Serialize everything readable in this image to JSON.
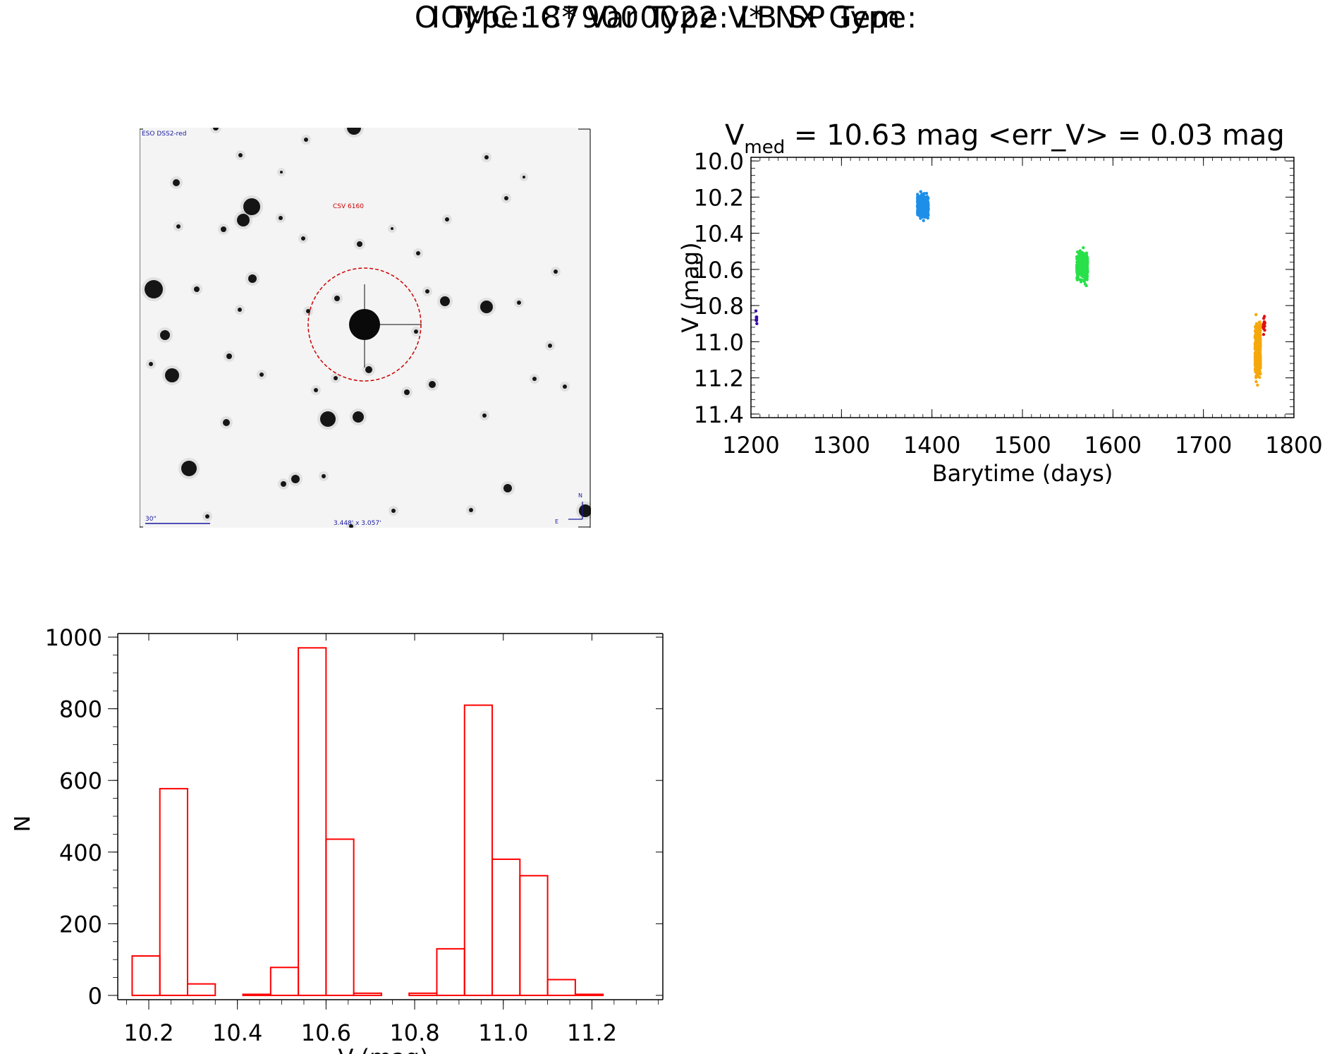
{
  "header": {
    "title_line1": "IOMC 1879000022   V* NX Gem",
    "title_line2": "O Type: C*  Var Type: LB  SP Type:"
  },
  "finder_chart": {
    "survey_label": "ESO DSS2-red",
    "object_label": "CSV 6160",
    "scale_bar_label": "30\"",
    "field_size_label": "3.448' x 3.057'",
    "compass_north": "N",
    "compass_east": "E",
    "colors": {
      "circle": "#cc0000",
      "annotation": "#1a1aa0",
      "object_label": "#cc0000"
    }
  },
  "chart_data": [
    {
      "type": "scatter",
      "title_main": "V",
      "title_sub": "med",
      "title_rest": " = 10.63 mag <err_V> = 0.03 mag",
      "xlabel": "Barytime (days)",
      "ylabel": "V (mag)",
      "xlim": [
        1200,
        1800
      ],
      "ylim": [
        11.42,
        9.98
      ],
      "y_inverted": true,
      "xticks": [
        1200,
        1300,
        1400,
        1500,
        1600,
        1700,
        1800
      ],
      "yticks": [
        "10.0",
        "10.2",
        "10.4",
        "10.6",
        "10.8",
        "11.0",
        "11.2",
        "11.4"
      ],
      "clusters": [
        {
          "color": "#3b0aa8",
          "x_center": 1206,
          "x_spread": 1,
          "y_min": 10.83,
          "y_max": 10.9,
          "y_center": 10.86,
          "count": 8
        },
        {
          "color": "#1e8fe8",
          "x_center": 1390,
          "x_spread": 6,
          "y_min": 10.17,
          "y_max": 10.33,
          "y_center": 10.25,
          "count": 420
        },
        {
          "color": "#29e04a",
          "x_center": 1566,
          "x_spread": 6,
          "y_min": 10.48,
          "y_max": 10.69,
          "y_center": 10.6,
          "count": 420
        },
        {
          "color": "#f5a80c",
          "x_center": 1760,
          "x_spread": 3,
          "y_min": 10.85,
          "y_max": 11.24,
          "y_center": 11.05,
          "count": 520
        },
        {
          "color": "#e01010",
          "x_center": 1767,
          "x_spread": 1,
          "y_min": 10.86,
          "y_max": 10.96,
          "y_center": 10.92,
          "count": 18
        }
      ]
    },
    {
      "type": "bar",
      "subtype": "histogram",
      "xlabel": "V (mag)",
      "ylabel": "N",
      "xlim": [
        10.13,
        11.36
      ],
      "ylim": [
        -12,
        1010
      ],
      "xticks": [
        "10.2",
        "10.4",
        "10.6",
        "10.8",
        "11.0",
        "11.2"
      ],
      "yticks": [
        "0",
        "200",
        "400",
        "600",
        "800",
        "1000"
      ],
      "bin_width": 0.0625,
      "bins": [
        {
          "left": 10.1625,
          "count": 110
        },
        {
          "left": 10.225,
          "count": 577
        },
        {
          "left": 10.2875,
          "count": 32
        },
        {
          "left": 10.35,
          "count": 0
        },
        {
          "left": 10.4125,
          "count": 3
        },
        {
          "left": 10.475,
          "count": 78
        },
        {
          "left": 10.5375,
          "count": 970
        },
        {
          "left": 10.6,
          "count": 436
        },
        {
          "left": 10.6625,
          "count": 6
        },
        {
          "left": 10.725,
          "count": 0
        },
        {
          "left": 10.7875,
          "count": 6
        },
        {
          "left": 10.85,
          "count": 130
        },
        {
          "left": 10.9125,
          "count": 810
        },
        {
          "left": 10.975,
          "count": 380
        },
        {
          "left": 11.0375,
          "count": 334
        },
        {
          "left": 11.1,
          "count": 44
        },
        {
          "left": 11.1625,
          "count": 3
        }
      ],
      "bar_color": "#ff0000"
    }
  ]
}
